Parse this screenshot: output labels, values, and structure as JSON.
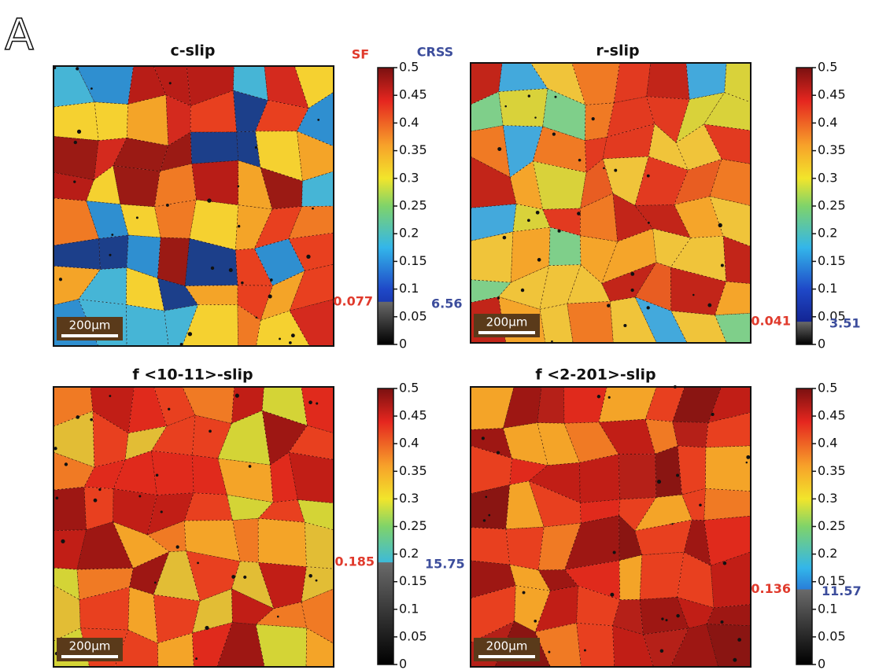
{
  "figure_label": "A",
  "header": {
    "sf": "SF",
    "crss": "CRSS"
  },
  "colorbar": {
    "lim": [
      0,
      0.5
    ],
    "ticks": [
      0,
      0.05,
      0.1,
      0.15,
      0.2,
      0.25,
      0.3,
      0.35,
      0.4,
      0.45,
      0.5
    ]
  },
  "panels": [
    {
      "title": "c-slip",
      "sf_threshold": 0.077,
      "crss": 6.56,
      "scale_bar": "200µm"
    },
    {
      "title": "r-slip",
      "sf_threshold": 0.041,
      "crss": 3.51,
      "scale_bar": "200µm"
    },
    {
      "title": "f <10-11>-slip",
      "sf_threshold": 0.185,
      "crss": 15.75,
      "scale_bar": "200µm"
    },
    {
      "title": "f <2-201>-slip",
      "sf_threshold": 0.136,
      "crss": 11.57,
      "scale_bar": "200µm"
    }
  ]
}
